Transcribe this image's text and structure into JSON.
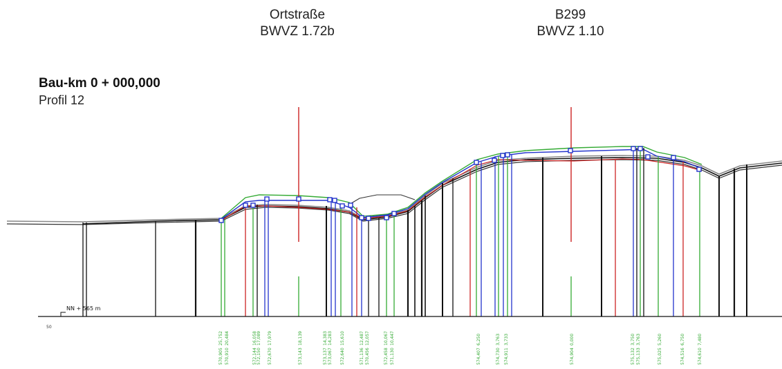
{
  "headers": [
    {
      "line1": "Ortstraße",
      "line2": "BWVZ 1.72b"
    },
    {
      "line1": "B299",
      "line2": "BWVZ 1.10"
    }
  ],
  "title": "Bau-km 0 + 000,000",
  "subtitle": "Profil 12",
  "datum_label": "NN + 565 m",
  "scale_label": "50",
  "station_labels": [
    {
      "a": "25,752",
      "b": "570,905"
    },
    {
      "a": "20,484",
      "b": "570,910"
    },
    {
      "a": "16,058",
      "b": "572,144"
    },
    {
      "a": "17,089",
      "b": "572,150"
    },
    {
      "a": "17,979",
      "b": "572,670"
    },
    {
      "a": "18,139",
      "b": "573,143"
    },
    {
      "a": "14,383",
      "b": "573,137"
    },
    {
      "a": "14,283",
      "b": "573,067"
    },
    {
      "a": "15,610",
      "b": "572,640"
    },
    {
      "a": "12,487",
      "b": "571,136"
    },
    {
      "a": "12,057",
      "b": "570,456"
    },
    {
      "a": "10,067",
      "b": "572,458"
    },
    {
      "a": "10,447",
      "b": "571,130"
    },
    {
      "a": "6,250",
      "b": "574,407"
    },
    {
      "a": "3,763",
      "b": "574,730"
    },
    {
      "a": "3,733",
      "b": "574,911"
    },
    {
      "a": "0,000",
      "b": "574,904"
    },
    {
      "a": "3,750",
      "b": "575,132"
    },
    {
      "a": "3,763",
      "b": "575,133"
    },
    {
      "a": "5,260",
      "b": "575,025"
    },
    {
      "a": "6,750",
      "b": "574,516"
    },
    {
      "a": "7,480",
      "b": "574,610"
    }
  ]
}
